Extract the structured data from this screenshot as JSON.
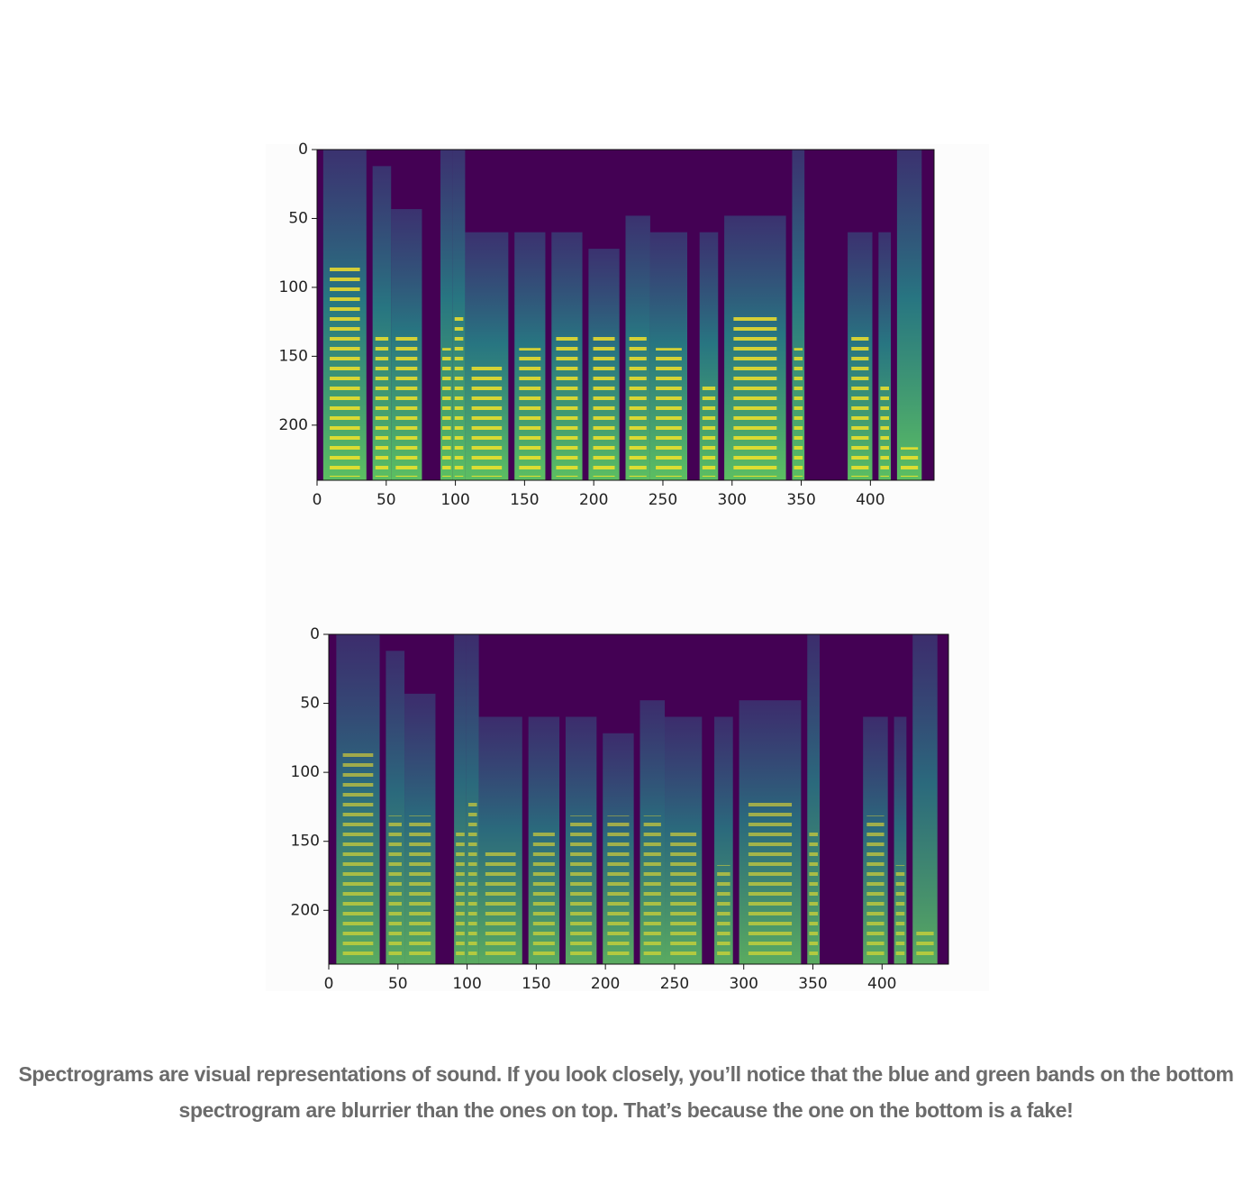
{
  "figures": [
    {
      "xlim": [
        0,
        446
      ],
      "ylim": [
        0,
        240
      ],
      "xticks": [
        0,
        50,
        100,
        150,
        200,
        250,
        300,
        350,
        400
      ],
      "yticks": [
        0,
        50,
        100,
        150,
        200
      ]
    },
    {
      "xlim": [
        0,
        448
      ],
      "ylim": [
        0,
        239
      ],
      "xticks": [
        0,
        50,
        100,
        150,
        200,
        250,
        300,
        350,
        400
      ],
      "yticks": [
        0,
        50,
        100,
        150,
        200
      ]
    }
  ],
  "caption": "Spectrograms are visual representations of sound. If you look closely, you’ll notice that the blue and green bands on the bottom spectrogram are blurrier than the ones on top. That’s because the one on the bottom is a fake!"
}
